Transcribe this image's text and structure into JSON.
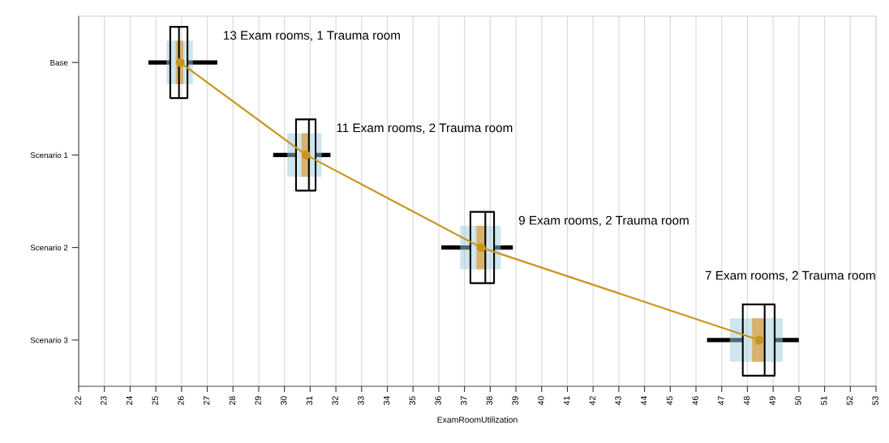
{
  "chart_data": {
    "type": "box",
    "orientation": "horizontal",
    "categories": [
      "Base",
      "Scenario 1",
      "Scenario 2",
      "Scenario 3"
    ],
    "series": [
      {
        "type": "bar",
        "color": "#cfe5ee",
        "base": [
          25.41,
          30.11,
          36.83,
          47.32
        ],
        "values": [
          1.03,
          1.34,
          1.58,
          2.05
        ]
      },
      {
        "type": "bar",
        "color": "#d8b26c",
        "base": [
          25.77,
          30.66,
          37.46,
          48.18
        ],
        "values": [
          0.3,
          0.26,
          0.35,
          0.51
        ]
      },
      {
        "color": "#000000",
        "boxes": [
          {
            "low": 24.71,
            "q1": 25.56,
            "median": 25.9,
            "q3": 26.23,
            "high": 27.39
          },
          {
            "low": 29.56,
            "q1": 30.45,
            "median": 30.95,
            "q3": 31.21,
            "high": 31.79
          },
          {
            "low": 36.1,
            "q1": 37.23,
            "median": 37.81,
            "q3": 38.15,
            "high": 38.88
          },
          {
            "low": 46.43,
            "q1": 47.82,
            "median": 48.67,
            "q3": 49.06,
            "high": 50.0
          }
        ]
      },
      {
        "type": "line",
        "color": "#c8951e",
        "marker": "circle",
        "values": [
          25.95,
          30.84,
          37.65,
          48.46
        ]
      }
    ],
    "xlim": [
      22,
      53
    ],
    "xticks": [
      22,
      23,
      24,
      25,
      26,
      27,
      28,
      29,
      30,
      31,
      32,
      33,
      34,
      35,
      36,
      37,
      38,
      39,
      40,
      41,
      42,
      43,
      44,
      45,
      46,
      47,
      48,
      49,
      50,
      51,
      52,
      53
    ],
    "xlabel": "ExamRoomUtilization",
    "grid": "x",
    "annotations": [
      "13 Exam rooms, 1 Trauma room",
      "11 Exam rooms, 2 Trauma room",
      "9 Exam rooms, 2 Trauma room",
      "7 Exam rooms, 2 Trauma room"
    ]
  }
}
